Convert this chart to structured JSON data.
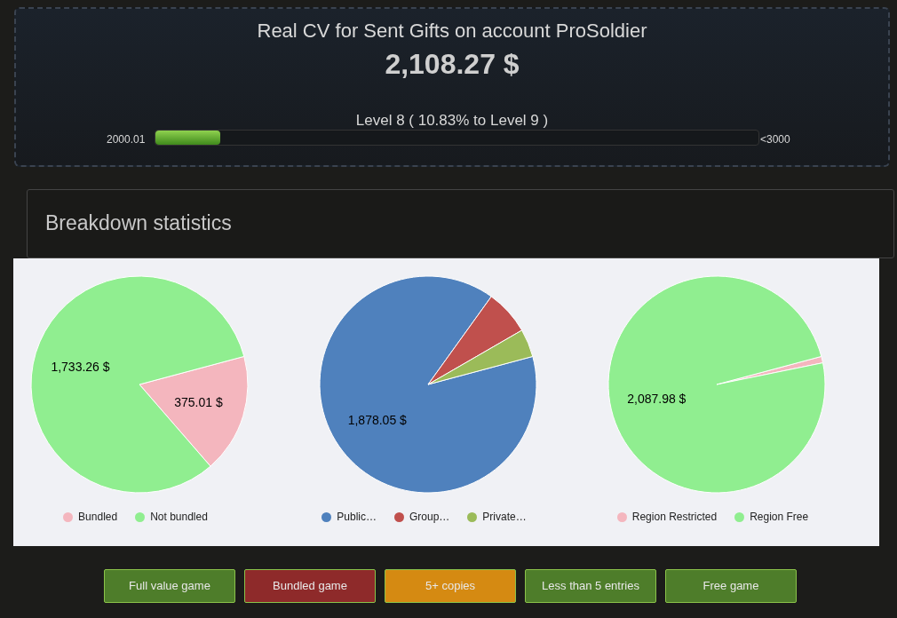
{
  "chart_data": [
    {
      "type": "other",
      "title": "Real CV for Sent Gifts on account ProSoldier",
      "subtitle": "2,108.27 $",
      "annotations": [
        "Level 8 ( 10.83% to Level 9 )",
        "2000.01",
        "<3000"
      ]
    },
    {
      "type": "other",
      "title": "Breakdown statistics"
    },
    {
      "type": "pie",
      "categories": [
        "Bundled",
        "Not bundled"
      ],
      "values": [
        375.01,
        1733.26
      ],
      "colors": [
        "#f4b6be",
        "#90ee90"
      ],
      "value_labels": [
        "375.01 $",
        "1,733.26 $"
      ],
      "legend": "bottom"
    },
    {
      "type": "pie",
      "categories": [
        "Public…",
        "Group…",
        "Private…"
      ],
      "values": [
        1878.05,
        142,
        88
      ],
      "colors": [
        "#4f81bd",
        "#c0504d",
        "#9bbb59"
      ],
      "value_labels": [
        "1,878.05 $",
        null,
        null
      ],
      "legend": "bottom"
    },
    {
      "type": "pie",
      "categories": [
        "Region Restricted",
        "Region Free"
      ],
      "values": [
        20.29,
        2087.98
      ],
      "colors": [
        "#f4b6be",
        "#90ee90"
      ],
      "value_labels": [
        null,
        "2,087.98 $"
      ],
      "legend": "bottom"
    },
    {
      "type": "other",
      "annotations": [
        "Full value game",
        "Bundled game",
        "5+ copies",
        "Less than 5 entries",
        "Free game"
      ],
      "colors": [
        "#4e7d2a",
        "#8e2a2a",
        "#d58a12",
        "#4e7d2a",
        "#4e7d2a"
      ]
    }
  ]
}
